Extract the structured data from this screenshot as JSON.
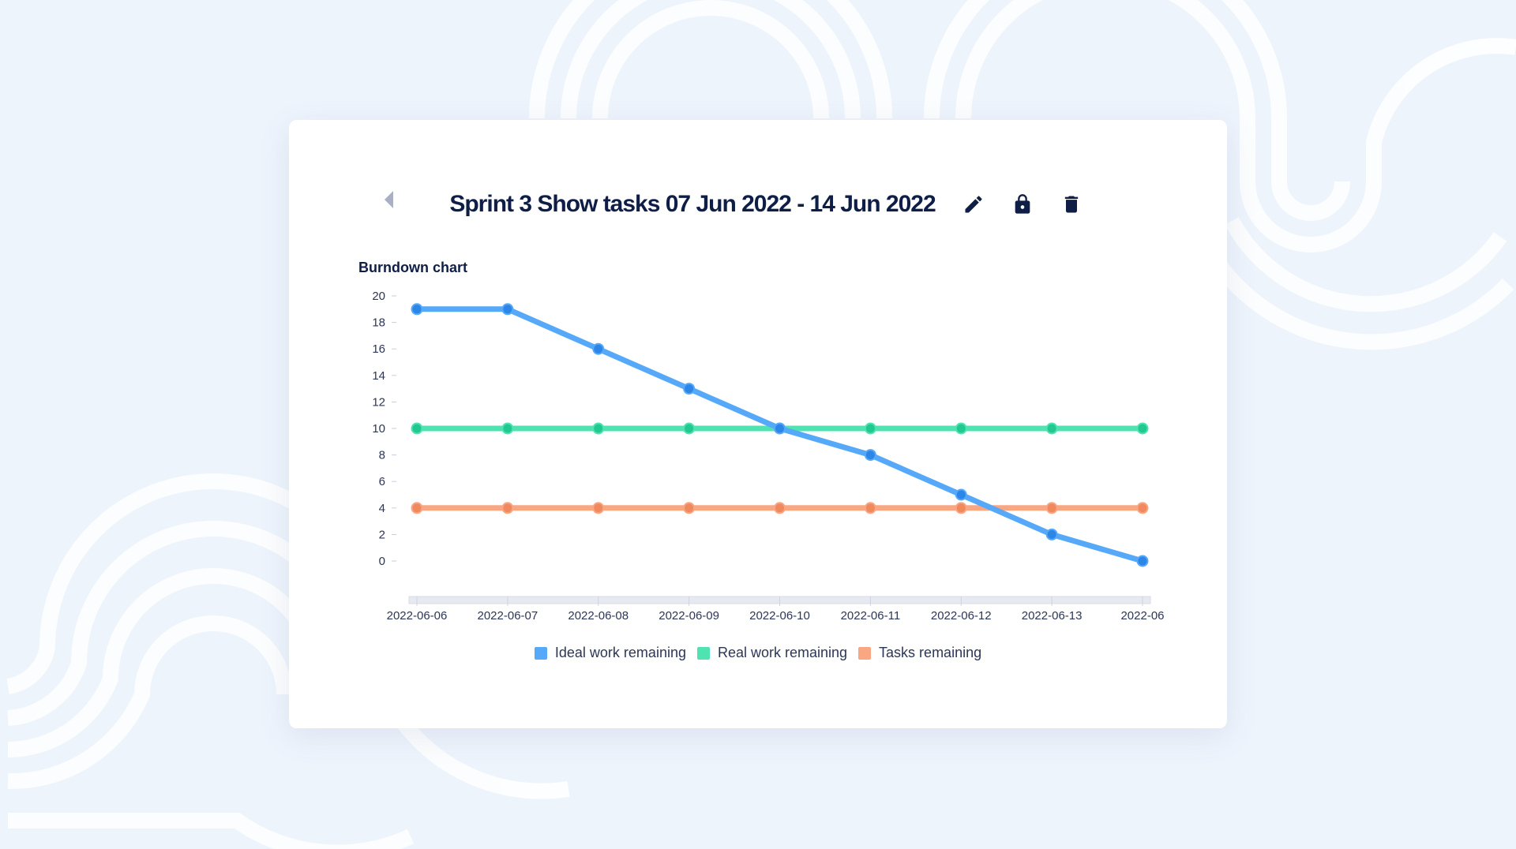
{
  "header": {
    "title": "Sprint 3 Show tasks 07 Jun 2022 - 14 Jun 2022"
  },
  "colors": {
    "ideal": "#55a9f8",
    "real": "#4fe3b2",
    "tasks": "#f9a683"
  },
  "chart_data": {
    "type": "line",
    "title": "Burndown chart",
    "x": [
      "2022-06-06",
      "2022-06-07",
      "2022-06-08",
      "2022-06-09",
      "2022-06-10",
      "2022-06-11",
      "2022-06-12",
      "2022-06-13",
      "2022-06-14"
    ],
    "x_tick_labels": [
      "2022-06-06",
      "2022-06-07",
      "2022-06-08",
      "2022-06-09",
      "2022-06-10",
      "2022-06-11",
      "2022-06-12",
      "2022-06-13",
      "2022-06"
    ],
    "yticks": [
      0,
      2,
      4,
      6,
      8,
      10,
      12,
      14,
      16,
      18,
      20
    ],
    "ylim": [
      0,
      20
    ],
    "series": [
      {
        "name": "Ideal work remaining",
        "key": "ideal",
        "values": [
          19,
          19,
          16,
          13,
          10,
          8,
          5,
          2,
          0
        ]
      },
      {
        "name": "Real work remaining",
        "key": "real",
        "values": [
          10,
          10,
          10,
          10,
          10,
          10,
          10,
          10,
          10
        ]
      },
      {
        "name": "Tasks remaining",
        "key": "tasks",
        "values": [
          4,
          4,
          4,
          4,
          4,
          4,
          4,
          4,
          4
        ]
      }
    ],
    "legend": "bottom-center"
  }
}
